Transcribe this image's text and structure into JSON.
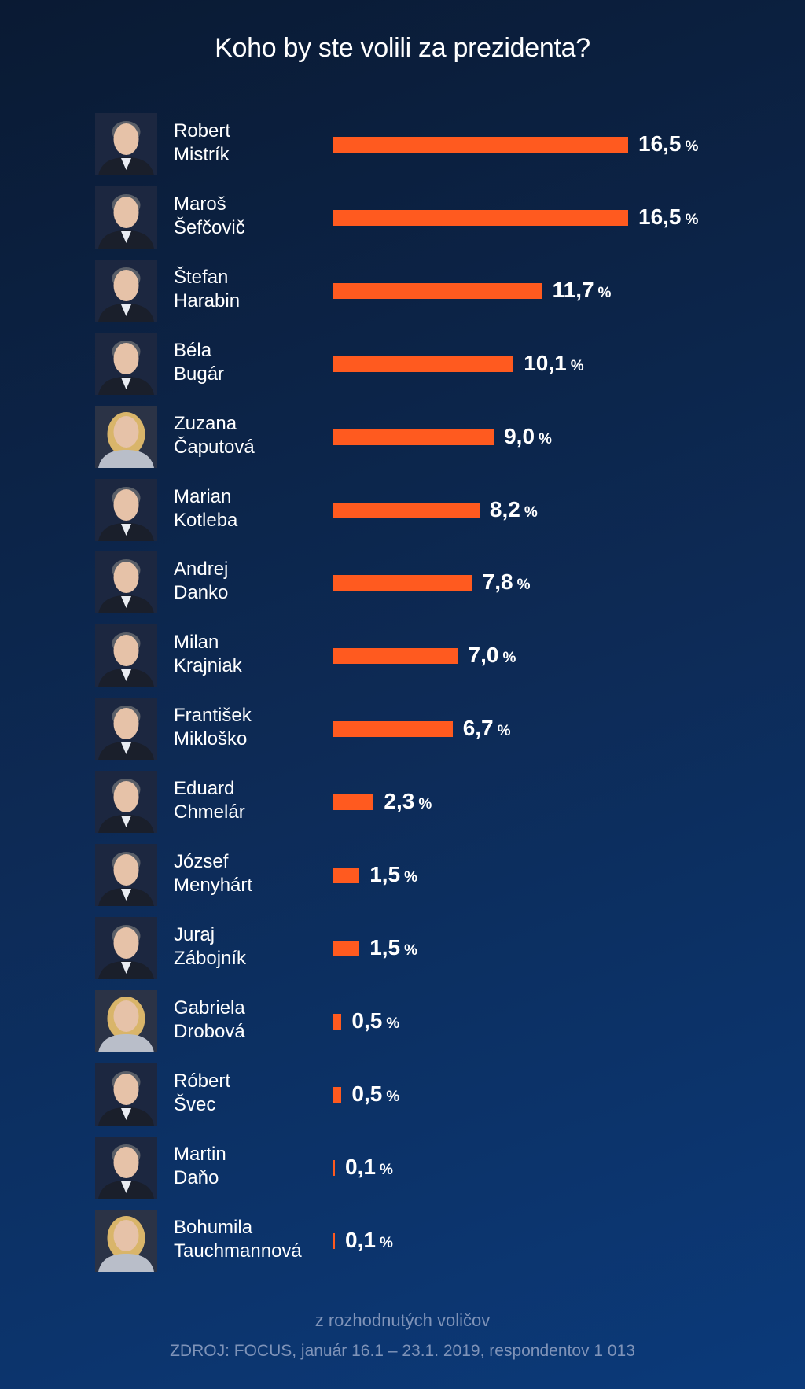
{
  "title": "Koho by ste volili za prezidenta?",
  "unit": "%",
  "colors": {
    "bar": "#ff5a1f",
    "background": "#0d2a55",
    "footnote": "#7f93b8"
  },
  "chart_data": {
    "type": "bar",
    "orientation": "horizontal",
    "title": "Koho by ste volili za prezidenta?",
    "xlabel": "",
    "ylabel": "",
    "grid": false,
    "categories": [
      "Robert Mistrík",
      "Maroš Šefčovič",
      "Štefan Harabin",
      "Béla Bugár",
      "Zuzana Čaputová",
      "Marian Kotleba",
      "Andrej Danko",
      "Milan Krajniak",
      "František Mikloško",
      "Eduard Chmelár",
      "József Menyhárt",
      "Juraj Zábojník",
      "Gabriela Drobová",
      "Róbert Švec",
      "Martin Daňo",
      "Bohumila Tauchmannová"
    ],
    "values": [
      16.5,
      16.5,
      11.7,
      10.1,
      9.0,
      8.2,
      7.8,
      7.0,
      6.7,
      2.3,
      1.5,
      1.5,
      0.5,
      0.5,
      0.1,
      0.1
    ],
    "labels": [
      "16,5",
      "16,5",
      "11,7",
      "10,1",
      "9,0",
      "8,2",
      "7,8",
      "7,0",
      "6,7",
      "2,3",
      "1,5",
      "1,5",
      "0,5",
      "0,5",
      "0,1",
      "0,1"
    ],
    "xlim": [
      0,
      16.5
    ]
  },
  "candidates": [
    {
      "first": "Robert",
      "last": "Mistrík",
      "icon": "man-portrait-icon"
    },
    {
      "first": "Maroš",
      "last": "Šefčovič",
      "icon": "man-portrait-icon"
    },
    {
      "first": "Štefan",
      "last": "Harabin",
      "icon": "man-portrait-icon"
    },
    {
      "first": "Béla",
      "last": "Bugár",
      "icon": "man-portrait-icon"
    },
    {
      "first": "Zuzana",
      "last": "Čaputová",
      "icon": "woman-portrait-icon"
    },
    {
      "first": "Marian",
      "last": "Kotleba",
      "icon": "man-portrait-icon"
    },
    {
      "first": "Andrej",
      "last": "Danko",
      "icon": "man-portrait-icon"
    },
    {
      "first": "Milan",
      "last": "Krajniak",
      "icon": "man-portrait-icon"
    },
    {
      "first": "František",
      "last": "Mikloško",
      "icon": "man-portrait-icon"
    },
    {
      "first": "Eduard",
      "last": "Chmelár",
      "icon": "man-portrait-icon"
    },
    {
      "first": "József",
      "last": "Menyhárt",
      "icon": "man-portrait-icon"
    },
    {
      "first": "Juraj",
      "last": "Zábojník",
      "icon": "man-portrait-icon"
    },
    {
      "first": "Gabriela",
      "last": "Drobová",
      "icon": "woman-portrait-icon"
    },
    {
      "first": "Róbert",
      "last": "Švec",
      "icon": "man-portrait-icon"
    },
    {
      "first": "Martin",
      "last": "Daňo",
      "icon": "man-portrait-icon"
    },
    {
      "first": "Bohumila",
      "last": "Tauchmannová",
      "icon": "woman-portrait-icon"
    }
  ],
  "footnote": {
    "note": "z rozhodnutých voličov",
    "source": "ZDROJ: FOCUS, január 16.1 – 23.1. 2019, respondentov 1 013"
  }
}
